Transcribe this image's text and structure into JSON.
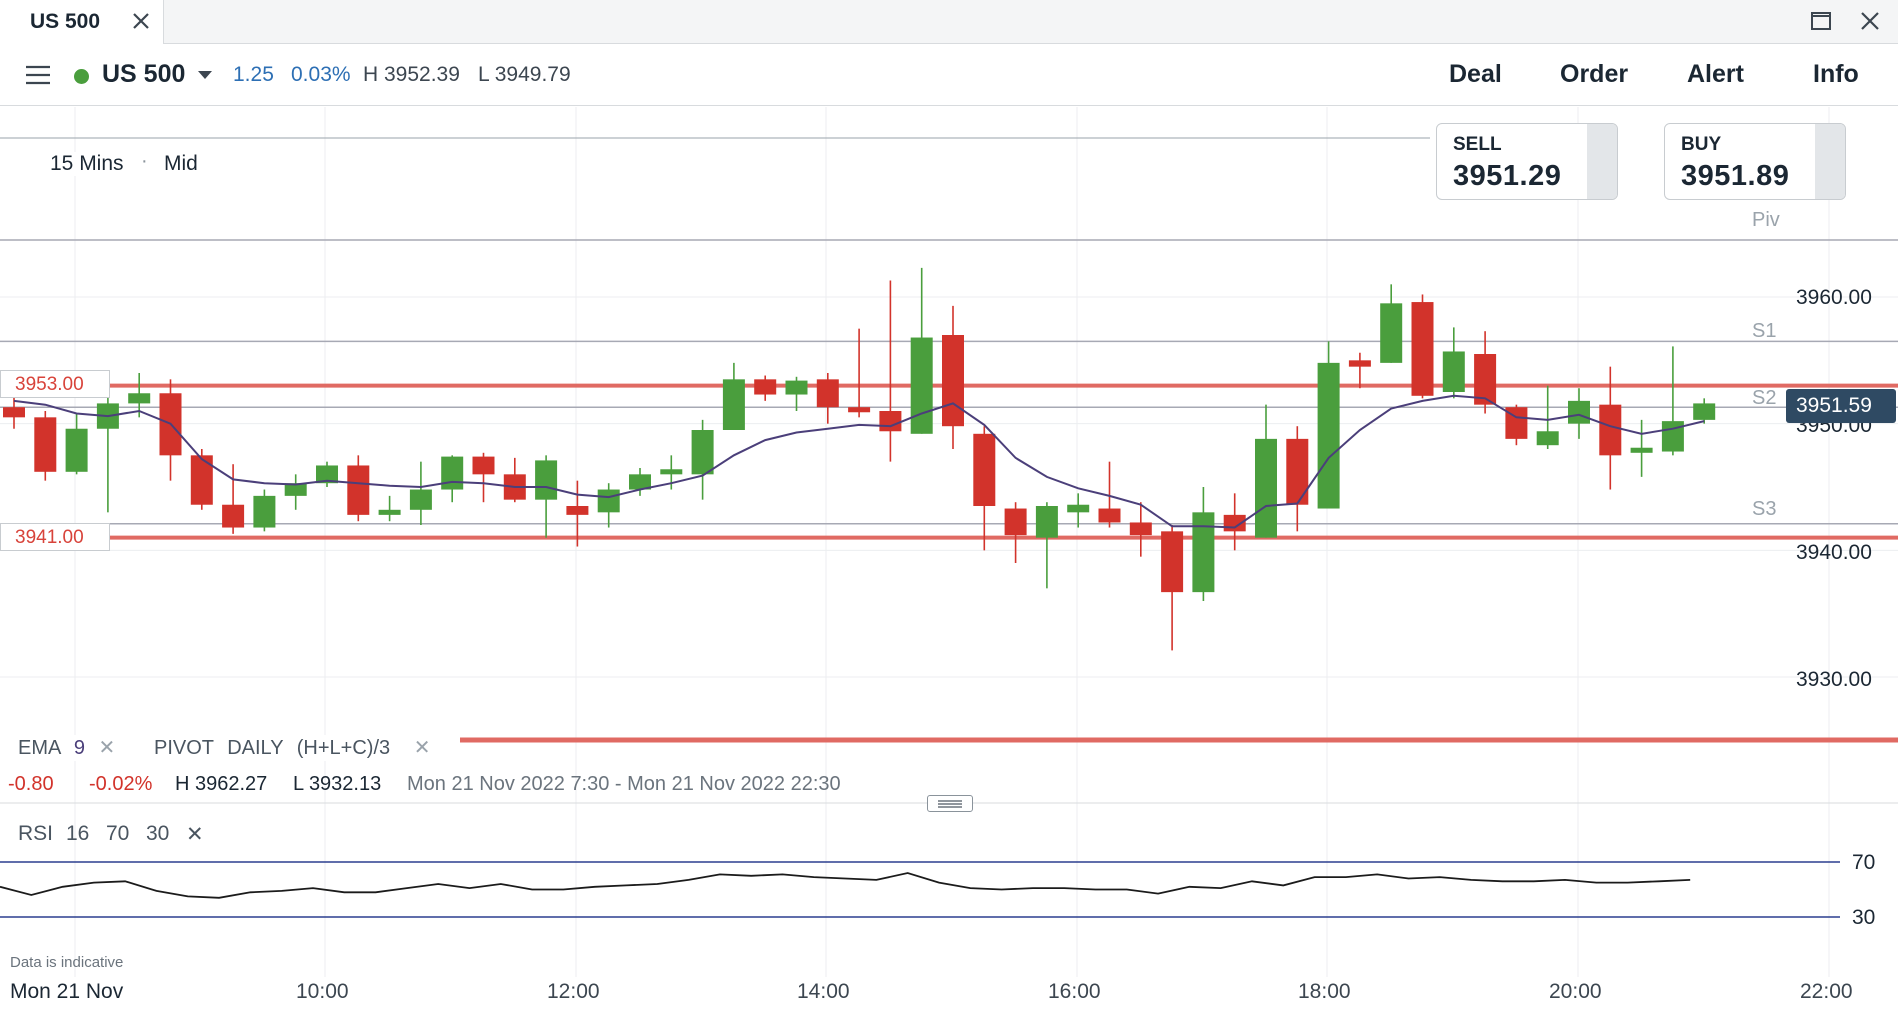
{
  "tab": {
    "title": "US 500"
  },
  "header": {
    "instrument": "US 500",
    "change": "1.25",
    "change_pct": "0.03%",
    "high": "H 3952.39",
    "low": "L 3949.79",
    "nav": [
      "Deal",
      "Order",
      "Alert",
      "Info"
    ]
  },
  "chart_settings": {
    "timeframe": "15 Mins",
    "price_type": "Mid"
  },
  "sell": {
    "label": "SELL",
    "price": "3951.29"
  },
  "buy": {
    "label": "BUY",
    "price": "3951.89"
  },
  "level_labels": {
    "upper": "3953.00",
    "lower": "3941.00"
  },
  "pivot_labels": {
    "piv": "Piv",
    "s1": "S1",
    "s2": "S2",
    "s3": "S3"
  },
  "price_axis": [
    "3960.00",
    "3950.00",
    "3940.00",
    "3930.00"
  ],
  "last_price": "3951.59",
  "indicators": {
    "ema_name": "EMA",
    "ema_period": "9",
    "pivot_name": "PIVOT",
    "pivot_period": "DAILY",
    "pivot_formula": "(H+L+C)/3",
    "remove_symbol": "✕"
  },
  "session_stats": {
    "change": "-0.80",
    "change_pct": "-0.02%",
    "high": "H 3962.27",
    "low": "L 3932.13",
    "range": "Mon 21 Nov 2022 7:30 - Mon 21 Nov 2022 22:30"
  },
  "rsi": {
    "name": "RSI",
    "period": "16",
    "upper": "70",
    "lower": "30"
  },
  "rsi_axis": [
    "70",
    "30"
  ],
  "disclaimer": "Data is indicative",
  "x_axis": [
    "Mon 21 Nov",
    "10:00",
    "12:00",
    "14:00",
    "16:00",
    "18:00",
    "20:00",
    "22:00"
  ],
  "colors": {
    "up": "#4a9e3d",
    "down": "#d2332b",
    "ema": "#4b3f7a",
    "level": "#e06a63",
    "accent": "#2d6fb4"
  },
  "chart_data": {
    "type": "candlestick",
    "interval": "15 Mins",
    "ylim": [
      3924,
      3970
    ],
    "x_ticks": [
      "10:00",
      "12:00",
      "14:00",
      "16:00",
      "18:00",
      "20:00",
      "22:00"
    ],
    "candles": [
      {
        "t": "07:30",
        "o": 3951.3,
        "h": 3953.5,
        "l": 3949.6,
        "c": 3950.5
      },
      {
        "t": "07:45",
        "o": 3950.5,
        "h": 3951.0,
        "l": 3945.5,
        "c": 3946.2
      },
      {
        "t": "08:00",
        "o": 3946.2,
        "h": 3950.8,
        "l": 3946.0,
        "c": 3949.6
      },
      {
        "t": "08:15",
        "o": 3949.6,
        "h": 3952.5,
        "l": 3943.0,
        "c": 3951.6
      },
      {
        "t": "08:30",
        "o": 3951.6,
        "h": 3954.0,
        "l": 3950.5,
        "c": 3952.4
      },
      {
        "t": "08:45",
        "o": 3952.4,
        "h": 3953.5,
        "l": 3945.5,
        "c": 3947.5
      },
      {
        "t": "09:00",
        "o": 3947.5,
        "h": 3948.0,
        "l": 3943.2,
        "c": 3943.6
      },
      {
        "t": "09:15",
        "o": 3943.6,
        "h": 3946.8,
        "l": 3941.3,
        "c": 3941.8
      },
      {
        "t": "09:30",
        "o": 3941.8,
        "h": 3944.8,
        "l": 3941.5,
        "c": 3944.3
      },
      {
        "t": "09:45",
        "o": 3944.3,
        "h": 3946.0,
        "l": 3943.2,
        "c": 3945.3
      },
      {
        "t": "10:00",
        "o": 3945.3,
        "h": 3947.0,
        "l": 3945.0,
        "c": 3946.7
      },
      {
        "t": "10:15",
        "o": 3946.7,
        "h": 3947.5,
        "l": 3942.3,
        "c": 3942.8
      },
      {
        "t": "10:30",
        "o": 3942.8,
        "h": 3944.3,
        "l": 3942.3,
        "c": 3943.2
      },
      {
        "t": "10:45",
        "o": 3943.2,
        "h": 3947.0,
        "l": 3942.0,
        "c": 3944.8
      },
      {
        "t": "11:00",
        "o": 3944.8,
        "h": 3947.5,
        "l": 3943.8,
        "c": 3947.4
      },
      {
        "t": "11:15",
        "o": 3947.4,
        "h": 3947.7,
        "l": 3943.8,
        "c": 3946.0
      },
      {
        "t": "11:30",
        "o": 3946.0,
        "h": 3947.3,
        "l": 3943.8,
        "c": 3944.0
      },
      {
        "t": "11:45",
        "o": 3944.0,
        "h": 3947.5,
        "l": 3941.0,
        "c": 3947.1
      },
      {
        "t": "12:00",
        "o": 3943.5,
        "h": 3945.5,
        "l": 3940.3,
        "c": 3942.8
      },
      {
        "t": "12:15",
        "o": 3943.0,
        "h": 3945.3,
        "l": 3941.8,
        "c": 3944.8
      },
      {
        "t": "12:30",
        "o": 3944.8,
        "h": 3946.5,
        "l": 3944.3,
        "c": 3946.0
      },
      {
        "t": "12:45",
        "o": 3946.0,
        "h": 3947.5,
        "l": 3944.8,
        "c": 3946.4
      },
      {
        "t": "13:00",
        "o": 3946.0,
        "h": 3950.3,
        "l": 3944.0,
        "c": 3949.5
      },
      {
        "t": "13:15",
        "o": 3949.5,
        "h": 3954.8,
        "l": 3949.5,
        "c": 3953.5
      },
      {
        "t": "13:30",
        "o": 3953.5,
        "h": 3953.8,
        "l": 3951.8,
        "c": 3952.3
      },
      {
        "t": "13:45",
        "o": 3952.3,
        "h": 3953.7,
        "l": 3951.0,
        "c": 3953.4
      },
      {
        "t": "14:00",
        "o": 3953.5,
        "h": 3954.0,
        "l": 3950.0,
        "c": 3951.3
      },
      {
        "t": "14:15",
        "o": 3951.3,
        "h": 3957.5,
        "l": 3950.5,
        "c": 3950.9
      },
      {
        "t": "14:30",
        "o": 3951.0,
        "h": 3961.3,
        "l": 3947.0,
        "c": 3949.4
      },
      {
        "t": "14:45",
        "o": 3949.2,
        "h": 3962.3,
        "l": 3949.2,
        "c": 3956.8
      },
      {
        "t": "15:00",
        "o": 3957.0,
        "h": 3959.3,
        "l": 3948.0,
        "c": 3949.8
      },
      {
        "t": "15:15",
        "o": 3949.2,
        "h": 3949.8,
        "l": 3940.0,
        "c": 3943.5
      },
      {
        "t": "15:30",
        "o": 3943.3,
        "h": 3943.8,
        "l": 3939.0,
        "c": 3941.2
      },
      {
        "t": "15:45",
        "o": 3941.0,
        "h": 3943.8,
        "l": 3937.0,
        "c": 3943.5
      },
      {
        "t": "16:00",
        "o": 3943.0,
        "h": 3944.5,
        "l": 3941.8,
        "c": 3943.6
      },
      {
        "t": "16:15",
        "o": 3943.3,
        "h": 3947.0,
        "l": 3941.8,
        "c": 3942.2
      },
      {
        "t": "16:30",
        "o": 3942.2,
        "h": 3943.8,
        "l": 3939.5,
        "c": 3941.2
      },
      {
        "t": "16:45",
        "o": 3941.5,
        "h": 3942.0,
        "l": 3932.1,
        "c": 3936.7
      },
      {
        "t": "17:00",
        "o": 3936.7,
        "h": 3945.0,
        "l": 3936.0,
        "c": 3943.0
      },
      {
        "t": "17:15",
        "o": 3942.8,
        "h": 3944.5,
        "l": 3940.0,
        "c": 3941.5
      },
      {
        "t": "17:30",
        "o": 3941.0,
        "h": 3951.5,
        "l": 3941.0,
        "c": 3948.8
      },
      {
        "t": "17:45",
        "o": 3948.8,
        "h": 3949.8,
        "l": 3941.5,
        "c": 3943.6
      },
      {
        "t": "18:00",
        "o": 3943.3,
        "h": 3956.5,
        "l": 3943.3,
        "c": 3954.8
      },
      {
        "t": "18:15",
        "o": 3955.0,
        "h": 3955.6,
        "l": 3952.8,
        "c": 3954.5
      },
      {
        "t": "18:30",
        "o": 3954.8,
        "h": 3961.0,
        "l": 3954.8,
        "c": 3959.5
      },
      {
        "t": "18:45",
        "o": 3959.6,
        "h": 3960.2,
        "l": 3952.0,
        "c": 3952.2
      },
      {
        "t": "19:00",
        "o": 3952.5,
        "h": 3957.6,
        "l": 3952.0,
        "c": 3955.7
      },
      {
        "t": "19:15",
        "o": 3955.5,
        "h": 3957.3,
        "l": 3950.8,
        "c": 3951.5
      },
      {
        "t": "19:30",
        "o": 3951.3,
        "h": 3951.5,
        "l": 3948.3,
        "c": 3948.8
      },
      {
        "t": "19:45",
        "o": 3948.3,
        "h": 3953.0,
        "l": 3948.0,
        "c": 3949.4
      },
      {
        "t": "20:00",
        "o": 3950.0,
        "h": 3952.8,
        "l": 3948.8,
        "c": 3951.8
      },
      {
        "t": "20:15",
        "o": 3951.5,
        "h": 3954.5,
        "l": 3944.8,
        "c": 3947.5
      },
      {
        "t": "20:30",
        "o": 3947.7,
        "h": 3950.3,
        "l": 3945.8,
        "c": 3948.1
      },
      {
        "t": "20:45",
        "o": 3947.8,
        "h": 3956.1,
        "l": 3947.5,
        "c": 3950.2
      },
      {
        "t": "21:00",
        "o": 3950.3,
        "h": 3952.0,
        "l": 3950.0,
        "c": 3951.6
      }
    ],
    "ema_9": [
      3951.8,
      3951.5,
      3950.8,
      3950.6,
      3951.0,
      3950.0,
      3947.2,
      3945.6,
      3945.3,
      3945.2,
      3945.5,
      3945.3,
      3945.1,
      3945.0,
      3945.4,
      3945.3,
      3945.0,
      3945.0,
      3944.4,
      3944.2,
      3944.8,
      3945.3,
      3945.9,
      3947.5,
      3948.7,
      3949.3,
      3949.6,
      3949.9,
      3949.8,
      3950.8,
      3951.6,
      3949.9,
      3947.3,
      3945.8,
      3944.9,
      3944.3,
      3943.6,
      3941.9,
      3941.9,
      3941.8,
      3943.5,
      3943.7,
      3947.3,
      3949.5,
      3951.2,
      3951.8,
      3952.2,
      3952.0,
      3950.5,
      3950.3,
      3950.7,
      3949.8,
      3949.2,
      3949.6,
      3950.2
    ],
    "levels": [
      3953.0,
      3941.0
    ],
    "pivots": {
      "Piv": 3964.5,
      "S1": 3956.5,
      "S2": 3951.3,
      "S3": 3942.1
    },
    "rsi": [
      52,
      46,
      52,
      55,
      56,
      49,
      45,
      44,
      48,
      49,
      51,
      48,
      48,
      51,
      54,
      51,
      54,
      50,
      50,
      52,
      53,
      54,
      57,
      61,
      60,
      61,
      59,
      58,
      57,
      62,
      55,
      51,
      50,
      51,
      51,
      50,
      50,
      47,
      52,
      51,
      56,
      53,
      59,
      59,
      61,
      58,
      59,
      57,
      56,
      56,
      57,
      55,
      55,
      56,
      57
    ]
  }
}
